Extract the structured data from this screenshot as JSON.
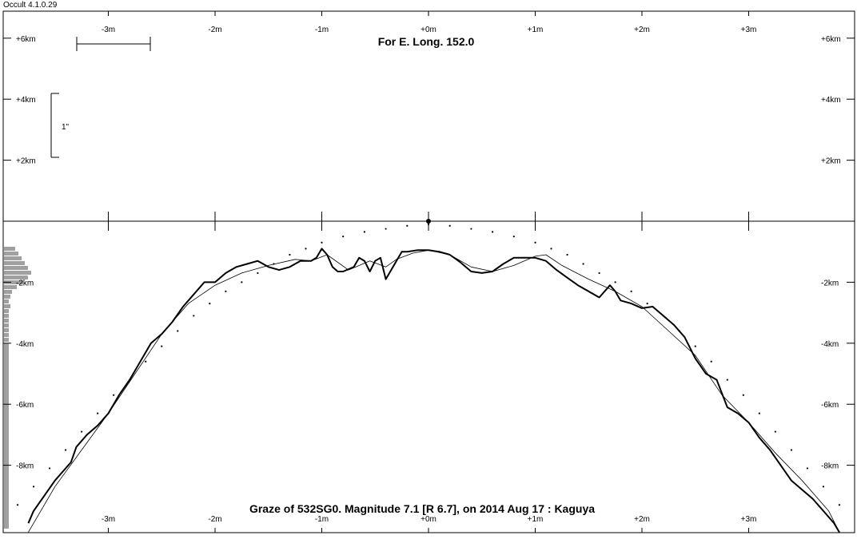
{
  "app": {
    "title": "Occult 4.1.0.29"
  },
  "chart_data": {
    "type": "line",
    "title": "For E. Long. 152.0",
    "caption": "Graze of  532SG0.  Magnitude 7.1 [R 6.7],  on 2014 Aug 17  :  Kaguya",
    "x_axis": {
      "unit": "m",
      "range": [
        -3.95,
        4.0
      ],
      "ticks": [
        -3,
        -2,
        -1,
        0,
        1,
        2,
        3
      ],
      "tick_labels": [
        "-3m",
        "-2m",
        "-1m",
        "+0m",
        "+1m",
        "+2m",
        "+3m"
      ]
    },
    "y_axis": {
      "unit": "km",
      "range": [
        -10.2,
        7.6
      ],
      "ticks": [
        6,
        4,
        2,
        -2,
        -4,
        -6,
        -8
      ],
      "tick_labels": [
        "+6km",
        "+4km",
        "+2km",
        "-2km",
        "-4km",
        "-6km",
        "-8km"
      ]
    },
    "scale_bar_label": "1\"",
    "grid": false,
    "center_marker": {
      "x": 0,
      "y": 0
    },
    "series": [
      {
        "style": "thick-profile",
        "x": [
          -3.75,
          -3.7,
          -3.6,
          -3.5,
          -3.45,
          -3.35,
          -3.3,
          -3.2,
          -3.1,
          -3.0,
          -2.9,
          -2.8,
          -2.7,
          -2.6,
          -2.5,
          -2.4,
          -2.3,
          -2.2,
          -2.1,
          -2.0,
          -1.9,
          -1.8,
          -1.7,
          -1.6,
          -1.5,
          -1.4,
          -1.3,
          -1.2,
          -1.1,
          -1.05,
          -1.0,
          -0.95,
          -0.9,
          -0.85,
          -0.8,
          -0.7,
          -0.65,
          -0.6,
          -0.55,
          -0.5,
          -0.45,
          -0.4,
          -0.35,
          -0.3,
          -0.25,
          -0.2,
          -0.1,
          0.0,
          0.1,
          0.2,
          0.3,
          0.4,
          0.5,
          0.6,
          0.7,
          0.8,
          0.9,
          1.0,
          1.1,
          1.2,
          1.3,
          1.4,
          1.5,
          1.6,
          1.7,
          1.75,
          1.8,
          1.9,
          2.0,
          2.1,
          2.2,
          2.3,
          2.4,
          2.5,
          2.6,
          2.7,
          2.8,
          2.9,
          3.0,
          3.1,
          3.2,
          3.3,
          3.4,
          3.5,
          3.6,
          3.7,
          3.8,
          3.85
        ],
        "y": [
          -9.9,
          -9.5,
          -9.0,
          -8.5,
          -8.3,
          -7.9,
          -7.4,
          -7.0,
          -6.7,
          -6.3,
          -5.7,
          -5.2,
          -4.6,
          -4.0,
          -3.7,
          -3.3,
          -2.8,
          -2.4,
          -2.0,
          -2.0,
          -1.7,
          -1.5,
          -1.4,
          -1.3,
          -1.5,
          -1.6,
          -1.5,
          -1.3,
          -1.3,
          -1.2,
          -0.9,
          -1.1,
          -1.5,
          -1.65,
          -1.65,
          -1.5,
          -1.2,
          -1.3,
          -1.65,
          -1.3,
          -1.2,
          -1.9,
          -1.6,
          -1.3,
          -1.0,
          -1.0,
          -0.95,
          -0.95,
          -1.0,
          -1.1,
          -1.35,
          -1.65,
          -1.7,
          -1.65,
          -1.4,
          -1.2,
          -1.2,
          -1.2,
          -1.3,
          -1.6,
          -1.85,
          -2.1,
          -2.3,
          -2.5,
          -2.1,
          -2.3,
          -2.6,
          -2.7,
          -2.85,
          -2.8,
          -3.1,
          -3.4,
          -3.8,
          -4.5,
          -5.0,
          -5.2,
          -6.1,
          -6.3,
          -6.6,
          -7.1,
          -7.5,
          -8.0,
          -8.5,
          -8.8,
          -9.1,
          -9.5,
          -9.9,
          -10.2
        ]
      },
      {
        "style": "thin-smoothed",
        "x": [
          -3.75,
          -3.5,
          -3.25,
          -3.0,
          -2.75,
          -2.5,
          -2.25,
          -2.0,
          -1.75,
          -1.5,
          -1.25,
          -1.1,
          -0.95,
          -0.75,
          -0.55,
          -0.4,
          -0.3,
          -0.15,
          0.0,
          0.2,
          0.4,
          0.6,
          0.8,
          1.0,
          1.1,
          1.25,
          1.5,
          1.75,
          2.0,
          2.25,
          2.5,
          2.75,
          3.0,
          3.25,
          3.5,
          3.75,
          3.85
        ],
        "y": [
          -10.2,
          -8.7,
          -7.5,
          -6.3,
          -5.0,
          -3.7,
          -2.7,
          -2.1,
          -1.7,
          -1.45,
          -1.25,
          -1.3,
          -1.1,
          -1.6,
          -1.3,
          -1.5,
          -1.25,
          -1.05,
          -0.95,
          -1.1,
          -1.5,
          -1.65,
          -1.45,
          -1.15,
          -1.1,
          -1.45,
          -1.9,
          -2.3,
          -2.8,
          -3.6,
          -4.4,
          -5.7,
          -6.6,
          -7.6,
          -8.5,
          -9.5,
          -10.2
        ]
      },
      {
        "style": "dotted-limb",
        "x": [
          -3.85,
          -3.7,
          -3.55,
          -3.4,
          -3.25,
          -3.1,
          -2.95,
          -2.8,
          -2.65,
          -2.5,
          -2.35,
          -2.2,
          -2.05,
          -1.9,
          -1.75,
          -1.6,
          -1.45,
          -1.3,
          -1.15,
          -1.0,
          -0.8,
          -0.6,
          -0.4,
          -0.2,
          0.0,
          0.2,
          0.4,
          0.6,
          0.8,
          1.0,
          1.15,
          1.3,
          1.45,
          1.6,
          1.75,
          1.9,
          2.05,
          2.2,
          2.35,
          2.5,
          2.65,
          2.8,
          2.95,
          3.1,
          3.25,
          3.4,
          3.55,
          3.7,
          3.85
        ],
        "y": [
          -9.3,
          -8.7,
          -8.1,
          -7.5,
          -6.9,
          -6.3,
          -5.7,
          -5.2,
          -4.6,
          -4.1,
          -3.6,
          -3.1,
          -2.7,
          -2.3,
          -2.0,
          -1.7,
          -1.4,
          -1.1,
          -0.9,
          -0.7,
          -0.5,
          -0.35,
          -0.25,
          -0.15,
          -0.1,
          -0.15,
          -0.25,
          -0.35,
          -0.5,
          -0.7,
          -0.9,
          -1.1,
          -1.4,
          -1.7,
          -2.0,
          -2.3,
          -2.7,
          -3.1,
          -3.6,
          -4.1,
          -4.6,
          -5.2,
          -5.7,
          -6.3,
          -6.9,
          -7.5,
          -8.1,
          -8.7,
          -9.3
        ]
      }
    ]
  }
}
